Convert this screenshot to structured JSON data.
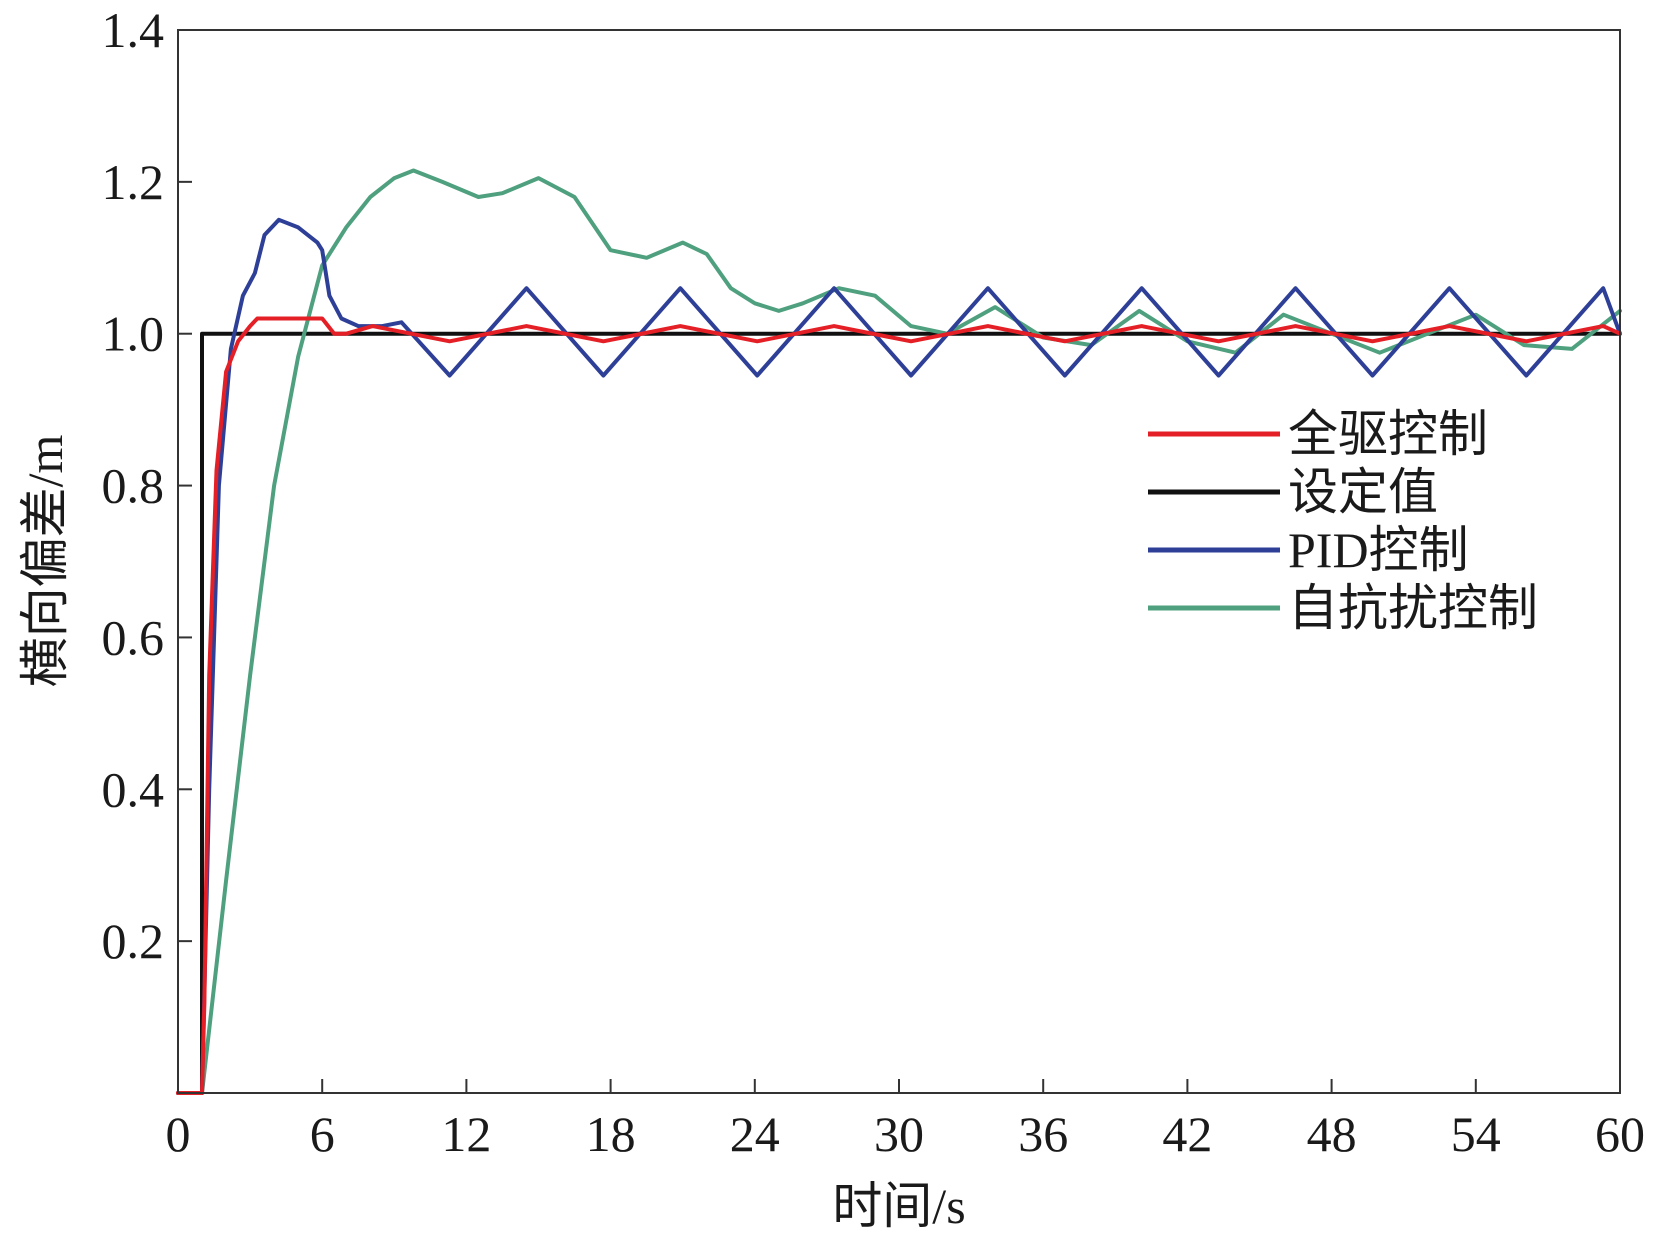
{
  "chart_data": {
    "type": "line",
    "title": "",
    "xlabel": "时间/s",
    "ylabel": "横向偏差/m",
    "xlim": [
      0,
      60
    ],
    "ylim": [
      0,
      1.4
    ],
    "xticks": [
      0,
      6,
      12,
      18,
      24,
      30,
      36,
      42,
      48,
      54,
      60
    ],
    "xtick_labels": [
      "0",
      "6",
      "12",
      "18",
      "24",
      "30",
      "36",
      "42",
      "48",
      "54",
      "60"
    ],
    "yticks": [
      0.2,
      0.4,
      0.6,
      0.8,
      1.0,
      1.2,
      1.4
    ],
    "ytick_labels": [
      "0.2",
      "0.4",
      "0.6",
      "0.8",
      "1.0",
      "1.2",
      "1.4"
    ],
    "grid": false,
    "legend_position": "right",
    "series": [
      {
        "name": "全驱控制",
        "color": "#e41f26",
        "x": [
          0,
          1,
          1.1,
          1.3,
          1.6,
          2.0,
          2.5,
          3.0,
          3.3,
          3.6,
          6.0,
          6.5,
          7,
          8.1,
          11.3,
          14.5,
          17.7,
          20.9,
          24.1,
          27.3,
          30.5,
          33.7,
          36.9,
          40.1,
          43.3,
          46.5,
          49.7,
          52.9,
          56.1,
          59.3,
          60
        ],
        "y": [
          0,
          0,
          0.12,
          0.55,
          0.82,
          0.95,
          0.99,
          1.01,
          1.02,
          1.02,
          1.02,
          1.0,
          1.0,
          1.01,
          0.99,
          1.01,
          0.99,
          1.01,
          0.99,
          1.01,
          0.99,
          1.01,
          0.99,
          1.01,
          0.99,
          1.01,
          0.99,
          1.01,
          0.99,
          1.01,
          1.0
        ]
      },
      {
        "name": "设定值",
        "color": "#111111",
        "x": [
          0,
          1,
          1,
          60
        ],
        "y": [
          0,
          0,
          1.0,
          1.0
        ]
      },
      {
        "name": "PID控制",
        "color": "#2e3f97",
        "x": [
          0,
          1,
          1.3,
          1.7,
          2.2,
          2.7,
          3.2,
          3.6,
          4.2,
          5.0,
          5.8,
          6.0,
          6.3,
          6.8,
          7.5,
          8.5,
          9.3,
          11.3,
          14.5,
          17.7,
          20.9,
          24.1,
          27.3,
          30.5,
          33.7,
          36.9,
          40.1,
          43.3,
          46.5,
          49.7,
          52.9,
          56.1,
          59.3,
          60
        ],
        "y": [
          0,
          0,
          0.4,
          0.8,
          0.98,
          1.05,
          1.08,
          1.13,
          1.15,
          1.14,
          1.12,
          1.11,
          1.05,
          1.02,
          1.01,
          1.01,
          1.015,
          0.945,
          1.06,
          0.945,
          1.06,
          0.945,
          1.06,
          0.945,
          1.06,
          0.945,
          1.06,
          0.945,
          1.06,
          0.945,
          1.06,
          0.945,
          1.06,
          1.0
        ]
      },
      {
        "name": "自抗扰控制",
        "color": "#4fa07f",
        "x": [
          0,
          1,
          2,
          3,
          4,
          5,
          6,
          7,
          8,
          9,
          9.8,
          11,
          12.5,
          13.5,
          15,
          16.5,
          18,
          19.5,
          21,
          22,
          23,
          24,
          25,
          26,
          27.5,
          29,
          30.5,
          32,
          34,
          36,
          38,
          40,
          42,
          44,
          46,
          48,
          50,
          52,
          54,
          56,
          58,
          60
        ],
        "y": [
          0,
          0,
          0.28,
          0.55,
          0.8,
          0.97,
          1.09,
          1.14,
          1.18,
          1.205,
          1.215,
          1.2,
          1.18,
          1.185,
          1.205,
          1.18,
          1.11,
          1.1,
          1.12,
          1.105,
          1.06,
          1.04,
          1.03,
          1.04,
          1.06,
          1.05,
          1.01,
          1.0,
          1.035,
          0.995,
          0.985,
          1.03,
          0.99,
          0.975,
          1.025,
          1.0,
          0.975,
          1.0,
          1.025,
          0.985,
          0.98,
          1.03
        ]
      }
    ]
  }
}
